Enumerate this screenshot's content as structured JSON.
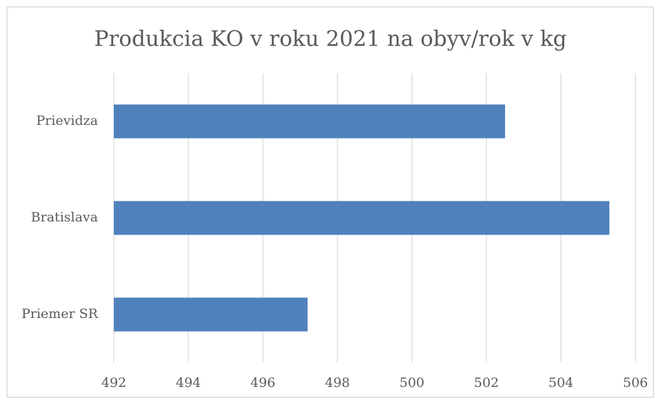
{
  "chart_data": {
    "type": "bar",
    "orientation": "horizontal",
    "title": "Produkcia KO v roku 2021 na obyv/rok v kg",
    "categories": [
      "Prievidza",
      "Bratislava",
      "Priemer SR"
    ],
    "values": [
      502.5,
      505.3,
      497.2
    ],
    "color": "#4f81bd",
    "xlim": [
      492,
      506
    ],
    "xticks": [
      492,
      494,
      496,
      498,
      500,
      502,
      504,
      506
    ],
    "grid": true
  }
}
